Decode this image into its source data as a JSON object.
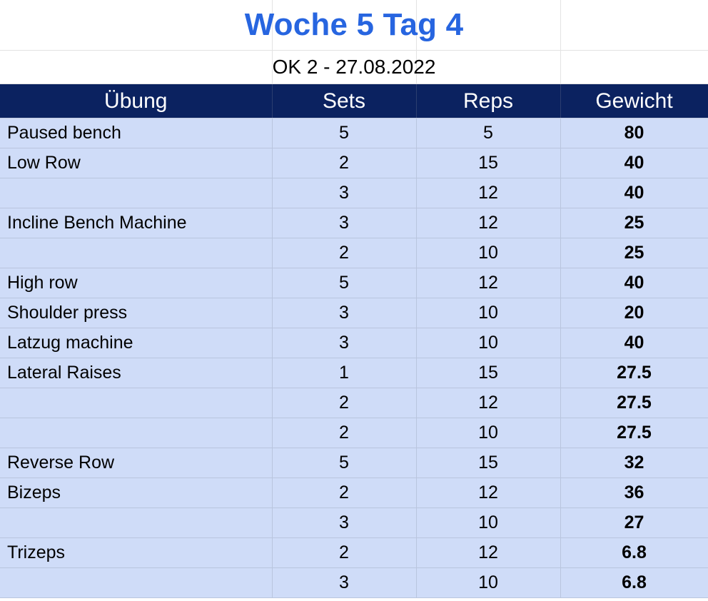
{
  "title": "Woche 5 Tag 4",
  "subtitle": "OK 2 - 27.08.2022",
  "colors": {
    "title": "#2765e0",
    "header_bg": "#0b2260",
    "row_bg": "#cfdcf8"
  },
  "headers": [
    "Übung",
    "Sets",
    "Reps",
    "Gewicht"
  ],
  "rows": [
    {
      "exercise": "Paused bench",
      "sets": "5",
      "reps": "5",
      "weight": "80"
    },
    {
      "exercise": "Low Row",
      "sets": "2",
      "reps": "15",
      "weight": "40"
    },
    {
      "exercise": "",
      "sets": "3",
      "reps": "12",
      "weight": "40"
    },
    {
      "exercise": "Incline Bench Machine",
      "sets": "3",
      "reps": "12",
      "weight": "25"
    },
    {
      "exercise": "",
      "sets": "2",
      "reps": "10",
      "weight": "25"
    },
    {
      "exercise": "High row",
      "sets": "5",
      "reps": "12",
      "weight": "40"
    },
    {
      "exercise": "Shoulder press",
      "sets": "3",
      "reps": "10",
      "weight": "20"
    },
    {
      "exercise": "Latzug machine",
      "sets": "3",
      "reps": "10",
      "weight": "40"
    },
    {
      "exercise": "Lateral Raises",
      "sets": "1",
      "reps": "15",
      "weight": "27.5"
    },
    {
      "exercise": "",
      "sets": "2",
      "reps": "12",
      "weight": "27.5"
    },
    {
      "exercise": "",
      "sets": "2",
      "reps": "10",
      "weight": "27.5"
    },
    {
      "exercise": "Reverse Row",
      "sets": "5",
      "reps": "15",
      "weight": "32"
    },
    {
      "exercise": "Bizeps",
      "sets": "2",
      "reps": "12",
      "weight": "36"
    },
    {
      "exercise": "",
      "sets": "3",
      "reps": "10",
      "weight": "27"
    },
    {
      "exercise": "Trizeps",
      "sets": "2",
      "reps": "12",
      "weight": "6.8"
    },
    {
      "exercise": "",
      "sets": "3",
      "reps": "10",
      "weight": "6.8"
    }
  ]
}
